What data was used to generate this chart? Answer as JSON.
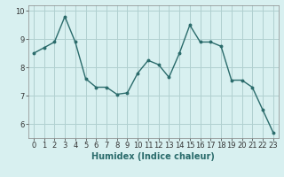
{
  "x": [
    0,
    1,
    2,
    3,
    4,
    5,
    6,
    7,
    8,
    9,
    10,
    11,
    12,
    13,
    14,
    15,
    16,
    17,
    18,
    19,
    20,
    21,
    22,
    23
  ],
  "y": [
    8.5,
    8.7,
    8.9,
    9.8,
    8.9,
    7.6,
    7.3,
    7.3,
    7.05,
    7.1,
    7.8,
    8.25,
    8.1,
    7.65,
    8.5,
    9.5,
    8.9,
    8.9,
    8.75,
    7.55,
    7.55,
    7.3,
    6.5,
    5.7
  ],
  "line_color": "#2a6b6b",
  "marker": ".",
  "marker_size": 4,
  "linewidth": 1.0,
  "bg_color": "#d8f0f0",
  "plot_bg_color": "#d8f0f0",
  "grid_color": "#b0d0d0",
  "xlabel": "Humidex (Indice chaleur)",
  "ylim": [
    5.5,
    10.2
  ],
  "xlim": [
    -0.5,
    23.5
  ],
  "yticks": [
    6,
    7,
    8,
    9,
    10
  ],
  "xticks": [
    0,
    1,
    2,
    3,
    4,
    5,
    6,
    7,
    8,
    9,
    10,
    11,
    12,
    13,
    14,
    15,
    16,
    17,
    18,
    19,
    20,
    21,
    22,
    23
  ],
  "tick_fontsize": 6,
  "xlabel_fontsize": 7
}
